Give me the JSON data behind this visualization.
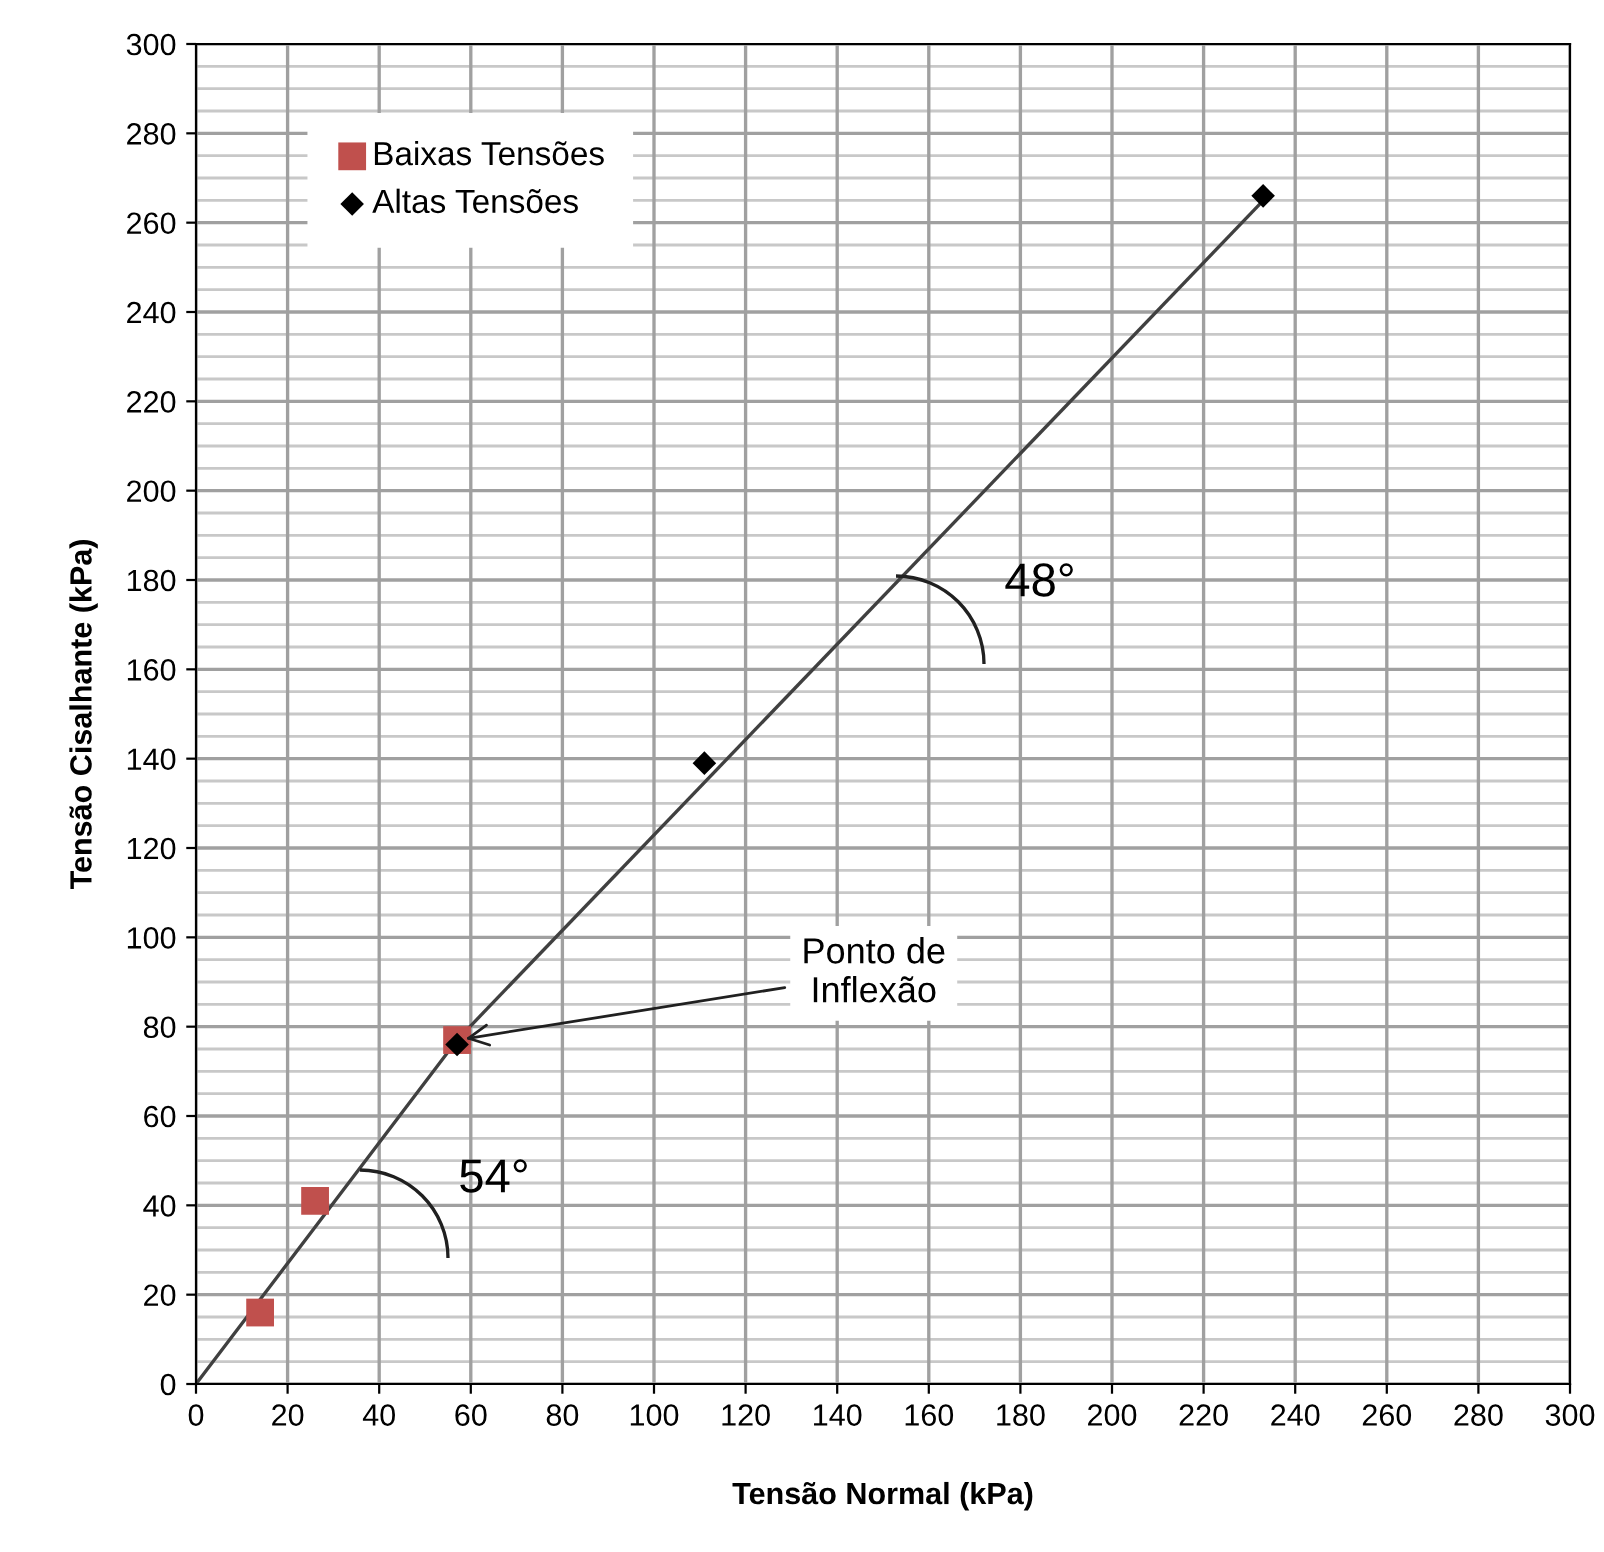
{
  "chart_data": {
    "type": "scatter",
    "xlabel": "Tensão Normal (kPa)",
    "ylabel": "Tensão Cisalhante (kPa)",
    "xlim": [
      0,
      300
    ],
    "ylim": [
      0,
      300
    ],
    "xticks": [
      0,
      20,
      40,
      60,
      80,
      100,
      120,
      140,
      160,
      180,
      200,
      220,
      240,
      260,
      280,
      300
    ],
    "yticks": [
      0,
      20,
      40,
      60,
      80,
      100,
      120,
      140,
      160,
      180,
      200,
      220,
      240,
      260,
      280,
      300
    ],
    "grid": true,
    "legend": "top left",
    "series": [
      {
        "name": "Baixas Tensões",
        "color": "#c0504d",
        "marker": "square",
        "x": [
          14,
          26,
          57
        ],
        "values": [
          16,
          41,
          77
        ]
      },
      {
        "name": "Altas Tensões",
        "color": "#000000",
        "marker": "diamond",
        "x": [
          57,
          111,
          233
        ],
        "values": [
          76,
          139,
          266
        ]
      },
      {
        "type": "line",
        "color": "#404040",
        "marker": "none",
        "x": [
          0,
          57
        ],
        "values": [
          0,
          77
        ]
      },
      {
        "type": "line",
        "color": "#404040",
        "marker": "none",
        "x": [
          57,
          234
        ],
        "values": [
          77,
          266
        ]
      }
    ],
    "annotations": [
      "54°",
      "48°",
      {
        "text": "Ponto de\nInflexão",
        "x": 57,
        "y": 77
      }
    ]
  }
}
